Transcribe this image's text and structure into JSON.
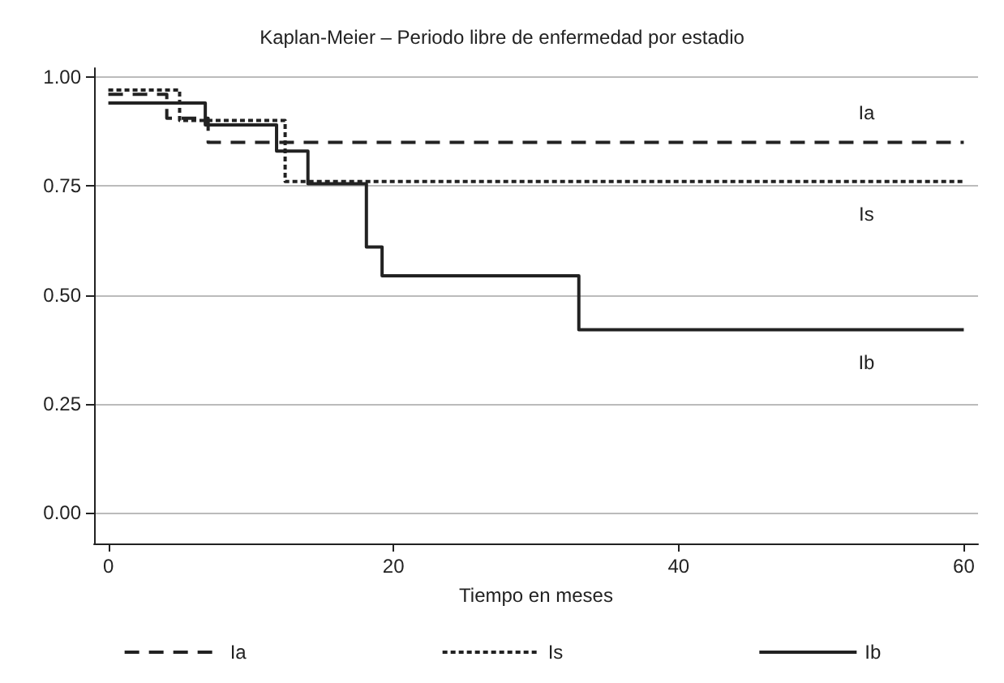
{
  "chart_data": {
    "type": "step",
    "title": "Kaplan-Meier – Periodo libre de enfermedad por estadio",
    "xlabel": "Tiempo en meses",
    "xlim": [
      -1,
      61
    ],
    "xticks": [
      0,
      20,
      40,
      60
    ],
    "ylim": [
      -0.07,
      1.02
    ],
    "yticks": [
      {
        "value": 0,
        "label": "0.00"
      },
      {
        "value": 0.25,
        "label": "0.25"
      },
      {
        "value": 0.5,
        "label": "0.50"
      },
      {
        "value": 0.75,
        "label": "0.75"
      },
      {
        "value": 1,
        "label": "1.00"
      }
    ],
    "grid": "y",
    "legend": "bottom",
    "marker": "none",
    "series": [
      {
        "name": "Ia",
        "color": "#222222",
        "line_style": "dashed",
        "x": [
          0,
          4.1,
          7,
          60
        ],
        "values": [
          0.96,
          0.905,
          0.85,
          0.85
        ]
      },
      {
        "name": "Is",
        "color": "#222222",
        "line_style": "dotted",
        "x": [
          0,
          5,
          12.4,
          60
        ],
        "values": [
          0.97,
          0.9,
          0.76,
          0.76
        ]
      },
      {
        "name": "Ib",
        "color": "#222222",
        "line_style": "solid",
        "x": [
          0,
          6.8,
          11.8,
          14,
          18.1,
          19.2,
          33,
          60
        ],
        "values": [
          0.94,
          0.89,
          0.83,
          0.755,
          0.61,
          0.544,
          0.42,
          0.42
        ]
      }
    ],
    "annotations": [
      "Ia",
      "Is",
      "Ib"
    ]
  }
}
